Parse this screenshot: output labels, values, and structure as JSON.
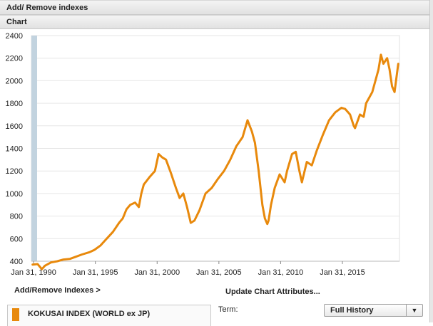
{
  "header": {
    "title": "Add/ Remove indexes"
  },
  "chart_panel": {
    "title": "Chart"
  },
  "chart_data": {
    "type": "line",
    "ylim": [
      400,
      2400
    ],
    "yticks": [
      400,
      600,
      800,
      1000,
      1200,
      1400,
      1600,
      1800,
      2000,
      2200,
      2400
    ],
    "xlim": [
      1989.9,
      2019.7
    ],
    "xticks": [
      1990.08,
      1995.08,
      2000.08,
      2005.08,
      2010.08,
      2015.08
    ],
    "xtick_labels": [
      "Jan 31, 1990",
      "Jan 31, 1995",
      "Jan 31, 2000",
      "Jan 31, 2005",
      "Jan 31, 2010",
      "Jan 31, 2015"
    ],
    "grid": true,
    "series": [
      {
        "name": "KOKUSAI INDEX (WORLD ex JP)",
        "color": "#e8890c",
        "x": [
          1990.0,
          1990.4,
          1990.75,
          1991.0,
          1991.5,
          1992.0,
          1992.5,
          1993.0,
          1993.5,
          1994.0,
          1994.6,
          1995.0,
          1995.5,
          1996.0,
          1996.5,
          1997.0,
          1997.3,
          1997.6,
          1997.9,
          1998.3,
          1998.6,
          1998.8,
          1999.0,
          1999.5,
          1999.9,
          2000.2,
          2000.5,
          2000.8,
          2001.2,
          2001.6,
          2001.9,
          2002.2,
          2002.5,
          2002.8,
          2003.1,
          2003.5,
          2004.0,
          2004.5,
          2005.0,
          2005.5,
          2006.0,
          2006.5,
          2007.0,
          2007.4,
          2007.75,
          2008.0,
          2008.3,
          2008.6,
          2008.8,
          2009.0,
          2009.1,
          2009.3,
          2009.6,
          2010.0,
          2010.4,
          2010.6,
          2011.0,
          2011.3,
          2011.6,
          2011.8,
          2012.2,
          2012.6,
          2013.0,
          2013.5,
          2014.0,
          2014.5,
          2015.0,
          2015.3,
          2015.7,
          2016.0,
          2016.1,
          2016.5,
          2016.8,
          2017.0,
          2017.5,
          2018.0,
          2018.2,
          2018.4,
          2018.7,
          2018.9,
          2019.1,
          2019.3,
          2019.6
        ],
        "y": [
          370,
          375,
          330,
          360,
          390,
          400,
          415,
          420,
          440,
          460,
          480,
          500,
          540,
          600,
          660,
          740,
          780,
          860,
          900,
          920,
          880,
          1000,
          1080,
          1150,
          1200,
          1350,
          1320,
          1300,
          1180,
          1050,
          960,
          1000,
          880,
          740,
          760,
          850,
          1000,
          1050,
          1130,
          1200,
          1300,
          1420,
          1500,
          1650,
          1550,
          1450,
          1200,
          900,
          780,
          730,
          760,
          900,
          1050,
          1170,
          1100,
          1200,
          1350,
          1370,
          1200,
          1100,
          1280,
          1250,
          1380,
          1520,
          1650,
          1720,
          1760,
          1750,
          1700,
          1600,
          1580,
          1700,
          1680,
          1800,
          1900,
          2100,
          2230,
          2150,
          2200,
          2100,
          1950,
          1900,
          2150
        ]
      }
    ]
  },
  "links": {
    "add_remove": "Add/Remove Indexes >",
    "update_attributes": "Update Chart Attributes..."
  },
  "index_list": {
    "items": [
      {
        "label": "KOKUSAI INDEX (WORLD ex JP)",
        "color": "#e8890c"
      }
    ]
  },
  "term": {
    "label": "Term:",
    "selected": "Full History",
    "arrow_icon": "▼"
  },
  "colors": {
    "line": "#e8890c",
    "axis_bar": "#c2d3df",
    "grid": "#e6e6e6"
  }
}
